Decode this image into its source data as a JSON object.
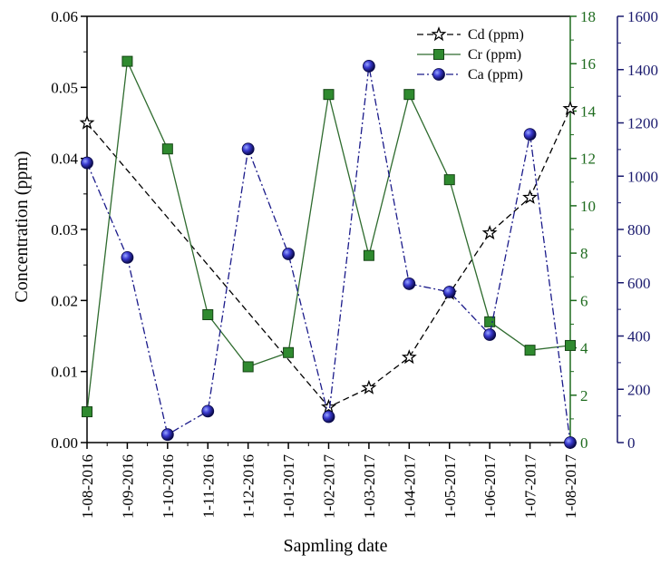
{
  "chart_data": {
    "type": "line",
    "xlabel": "Sapmling date",
    "ylabel": "Concentration (ppm)",
    "categories": [
      "1-08-2016",
      "1-09-2016",
      "1-10-2016",
      "1-11-2016",
      "1-12-2016",
      "1-01-2017",
      "1-02-2017",
      "1-03-2017",
      "1-04-2017",
      "1-05-2017",
      "1-06-2017",
      "1-07-2017",
      "1-08-2017"
    ],
    "axes": {
      "left": {
        "min": 0,
        "max": 0.06,
        "ticks": [
          "0.00",
          "0.01",
          "0.02",
          "0.03",
          "0.04",
          "0.05",
          "0.06"
        ],
        "color": "#000000"
      },
      "right1": {
        "min": 0,
        "max": 18,
        "ticks": [
          "0",
          "2",
          "4",
          "6",
          "8",
          "10",
          "12",
          "14",
          "16",
          "18"
        ],
        "color": "#1e6b1e"
      },
      "right2": {
        "min": 0,
        "max": 1600,
        "ticks": [
          "0",
          "200",
          "400",
          "600",
          "800",
          "1000",
          "1200",
          "1400",
          "1600"
        ],
        "color": "#1a1a6e"
      }
    },
    "series": [
      {
        "name": "Cd (ppm)",
        "axis": "left",
        "marker": "star",
        "line": "dash",
        "color": "#000000",
        "values": [
          0.045,
          null,
          null,
          null,
          null,
          null,
          0.005,
          0.0077,
          0.012,
          0.021,
          0.0295,
          0.0345,
          0.047
        ]
      },
      {
        "name": "Cr (ppm)",
        "axis": "right1",
        "marker": "square",
        "line": "solid",
        "color": "#2e6b2e",
        "values": [
          1.3,
          16.1,
          12.4,
          5.4,
          3.2,
          3.8,
          14.7,
          7.9,
          14.7,
          11.1,
          5.1,
          3.9,
          4.1
        ]
      },
      {
        "name": "Ca (ppm)",
        "axis": "right2",
        "marker": "circle",
        "line": "dashdot",
        "color": "#1a1a8a",
        "values": [
          1050,
          695,
          30,
          118,
          1102,
          708,
          97,
          1413,
          596,
          565,
          405,
          1157,
          0
        ]
      }
    ],
    "legend": "top-right",
    "grid": false
  }
}
